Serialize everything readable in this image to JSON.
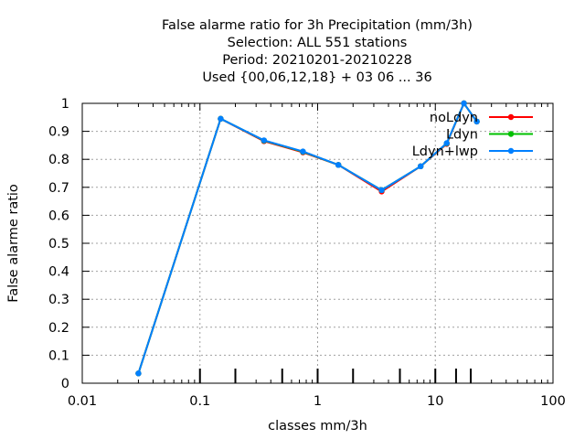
{
  "chart_data": {
    "type": "line",
    "title_lines": [
      "False alarme ratio  for 3h Precipitation (mm/3h)",
      "Selection: ALL    551 stations",
      "Period: 20210201-20210228",
      "Used {00,06,12,18} + 03 06 ... 36"
    ],
    "xlabel": "classes mm/3h",
    "ylabel": "False alarme ratio",
    "xscale": "log",
    "xlim": [
      0.01,
      100
    ],
    "ylim": [
      0,
      1
    ],
    "x_ticks": [
      0.01,
      0.1,
      1,
      10,
      100
    ],
    "x_tick_labels": [
      "0.01",
      "0.1",
      "1",
      "10",
      "100"
    ],
    "y_ticks": [
      0,
      0.1,
      0.2,
      0.3,
      0.4,
      0.5,
      0.6,
      0.7,
      0.8,
      0.9,
      1
    ],
    "y_tick_labels": [
      "0",
      "0.1",
      "0.2",
      "0.3",
      "0.4",
      "0.5",
      "0.6",
      "0.7",
      "0.8",
      "0.9",
      "1"
    ],
    "class_marks": [
      0.1,
      0.2,
      0.5,
      1,
      2,
      5,
      10,
      15,
      20
    ],
    "grid": true,
    "legend_position": "top-right",
    "series": [
      {
        "name": "noLdyn",
        "color": "#ff0000",
        "x": [
          0.03,
          0.15,
          0.35,
          0.75,
          1.5,
          3.5,
          7.5,
          12.5,
          17.5,
          22.5
        ],
        "y": [
          0.035,
          0.945,
          0.865,
          0.825,
          0.78,
          0.685,
          0.775,
          0.855,
          1.0,
          0.935
        ]
      },
      {
        "name": "Ldyn",
        "color": "#00c000",
        "x": [
          0.03,
          0.15,
          0.35,
          0.75,
          1.5,
          3.5,
          7.5,
          12.5,
          17.5,
          22.5
        ],
        "y": [
          0.035,
          0.945,
          0.867,
          0.827,
          0.78,
          0.69,
          0.775,
          0.857,
          1.0,
          0.935
        ]
      },
      {
        "name": "Ldyn+lwp",
        "color": "#0080ff",
        "x": [
          0.03,
          0.15,
          0.35,
          0.75,
          1.5,
          3.5,
          7.5,
          12.5,
          17.5,
          22.5
        ],
        "y": [
          0.035,
          0.945,
          0.868,
          0.828,
          0.78,
          0.69,
          0.775,
          0.858,
          1.0,
          0.935
        ]
      }
    ]
  }
}
